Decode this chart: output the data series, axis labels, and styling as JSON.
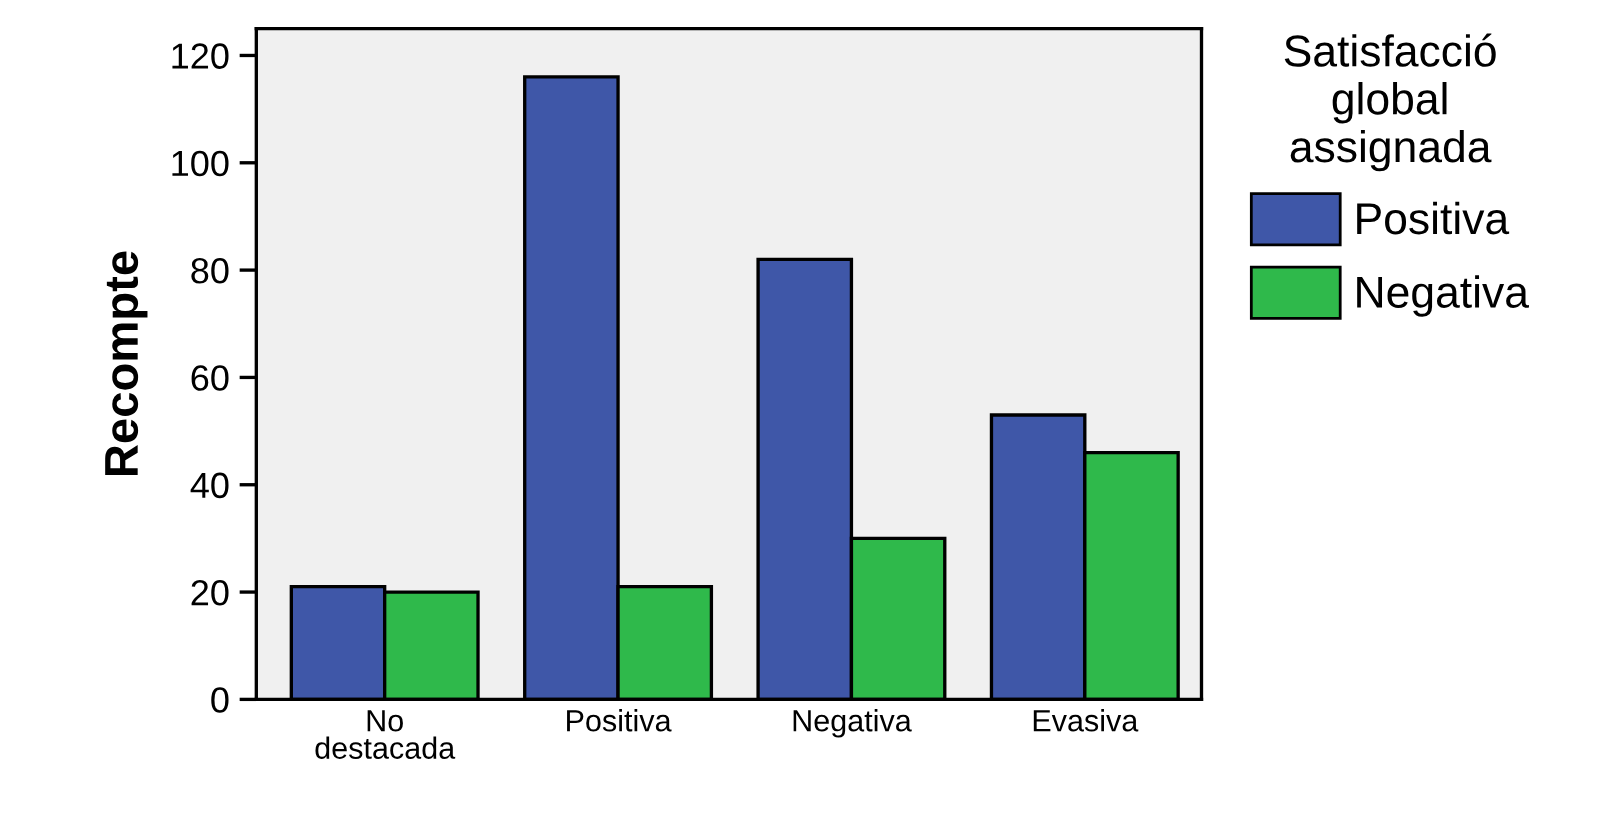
{
  "chart_data": {
    "type": "bar",
    "ylabel": "Recompte",
    "legend_title": "Satisfacció\nglobal\nassignada",
    "categories": [
      "No\ndestacada",
      "Positiva",
      "Negativa",
      "Evasiva"
    ],
    "series": [
      {
        "name": "Positiva",
        "color": "#3f57a8",
        "values": [
          21,
          116,
          82,
          53
        ]
      },
      {
        "name": "Negativa",
        "color": "#2fb94b",
        "values": [
          20,
          21,
          30,
          46
        ]
      }
    ],
    "ylim": [
      0,
      125
    ],
    "yticks": [
      0,
      20,
      40,
      60,
      80,
      100,
      120
    ],
    "grid": false,
    "legend": "right"
  }
}
